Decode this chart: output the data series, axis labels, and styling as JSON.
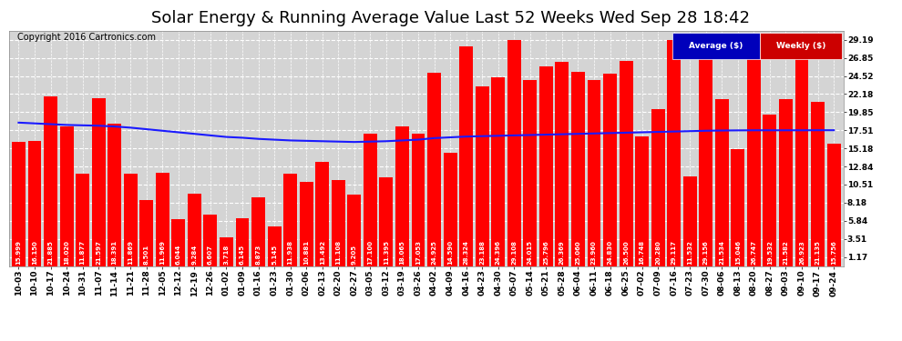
{
  "title": "Solar Energy & Running Average Value Last 52 Weeks Wed Sep 28 18:42",
  "copyright": "Copyright 2016 Cartronics.com",
  "bar_color": "#ff0000",
  "avg_line_color": "#1a1aff",
  "background_color": "#ffffff",
  "plot_bg_color": "#d4d4d4",
  "grid_color": "#ffffff",
  "legend_avg_bg": "#0000bb",
  "legend_weekly_bg": "#cc0000",
  "categories": [
    "10-03",
    "10-10",
    "10-17",
    "10-24",
    "10-31",
    "11-07",
    "11-14",
    "11-21",
    "11-28",
    "12-05",
    "12-12",
    "12-19",
    "12-26",
    "01-02",
    "01-09",
    "01-16",
    "01-23",
    "01-30",
    "02-06",
    "02-13",
    "02-20",
    "02-27",
    "03-05",
    "03-12",
    "03-19",
    "03-26",
    "04-02",
    "04-09",
    "04-16",
    "04-23",
    "04-30",
    "05-07",
    "05-14",
    "05-21",
    "05-28",
    "06-04",
    "06-11",
    "06-18",
    "06-25",
    "07-02",
    "07-09",
    "07-16",
    "07-23",
    "07-30",
    "08-06",
    "08-13",
    "08-20",
    "08-27",
    "09-03",
    "09-10",
    "09-17",
    "09-24"
  ],
  "weekly_values": [
    15.999,
    16.15,
    21.885,
    18.02,
    11.877,
    21.597,
    18.391,
    11.869,
    8.501,
    11.969,
    6.044,
    9.284,
    6.607,
    3.718,
    6.145,
    8.873,
    5.145,
    11.938,
    10.881,
    13.492,
    11.108,
    9.205,
    17.1,
    11.395,
    18.065,
    17.053,
    24.925,
    14.59,
    28.324,
    23.188,
    24.396,
    29.108,
    24.015,
    25.796,
    26.369,
    25.06,
    23.96,
    24.83,
    26.5,
    16.748,
    20.28,
    29.117,
    11.532,
    29.156,
    21.534,
    15.046,
    26.747,
    19.532,
    21.582,
    26.923,
    21.135,
    15.756
  ],
  "avg_values": [
    18.5,
    18.4,
    18.3,
    18.2,
    18.15,
    18.1,
    18.0,
    17.85,
    17.65,
    17.45,
    17.25,
    17.05,
    16.85,
    16.65,
    16.55,
    16.4,
    16.3,
    16.2,
    16.15,
    16.1,
    16.05,
    16.0,
    16.05,
    16.1,
    16.2,
    16.3,
    16.5,
    16.6,
    16.7,
    16.75,
    16.8,
    16.85,
    16.9,
    16.95,
    17.0,
    17.05,
    17.1,
    17.15,
    17.2,
    17.25,
    17.3,
    17.35,
    17.4,
    17.45,
    17.48,
    17.5,
    17.51,
    17.51,
    17.51,
    17.51,
    17.52,
    17.52
  ],
  "ylim": [
    0,
    30.36
  ],
  "yticks": [
    1.17,
    3.51,
    5.84,
    8.18,
    10.51,
    12.84,
    15.18,
    17.51,
    19.85,
    22.18,
    24.52,
    26.85,
    29.19
  ],
  "title_fontsize": 13,
  "copyright_fontsize": 7,
  "tick_fontsize": 6.5,
  "bar_label_fontsize": 5.0
}
